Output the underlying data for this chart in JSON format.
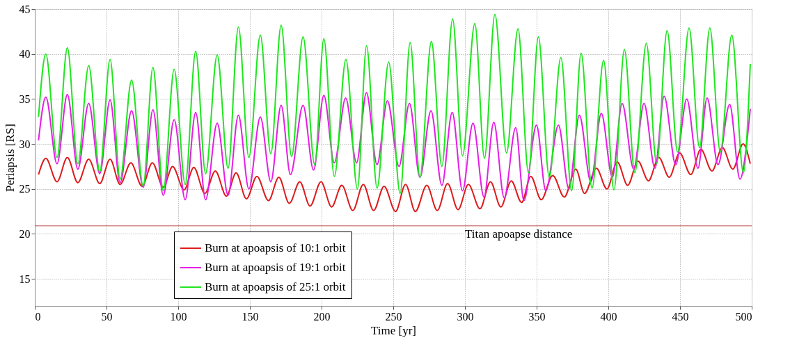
{
  "chart_data": {
    "type": "line",
    "xlabel": "Time [yr]",
    "ylabel": "Periapsis [RS]",
    "xlim": [
      0,
      500
    ],
    "ylim": [
      12,
      45
    ],
    "xticks": [
      0,
      50,
      100,
      150,
      200,
      250,
      300,
      350,
      400,
      450,
      500
    ],
    "yticks": [
      15,
      20,
      25,
      30,
      35,
      40,
      45
    ],
    "grid": true,
    "legend": "bottom left",
    "line_style": "solid",
    "marker": "none",
    "ref_lines": [
      {
        "axis": "y",
        "value": 20.9,
        "label": "Titan apoapse distance",
        "color": "#c0504d"
      }
    ],
    "series": [
      {
        "name": "Burn at apoapsis of 10:1 orbit",
        "color": "#dd1c1c",
        "x": [
          2.6,
          7.7,
          15.5,
          22.7,
          30,
          37.6,
          45.3,
          52.5,
          59.5,
          67.0,
          74.8,
          82.0,
          89.6,
          96.1,
          104.1,
          110.9,
          118.6,
          125.9,
          133.6,
          140.4,
          147.6,
          154.9,
          163.0,
          170.2,
          177.5,
          184.8,
          192.0,
          199.6,
          207.0,
          214.1,
          221.8,
          229.1,
          236.3,
          243.6,
          251.6,
          258.6,
          265.4,
          273.4,
          280.7,
          287.9,
          295.2,
          302.4,
          310.5,
          317.8,
          325.0,
          332.3,
          339.5,
          345.9,
          353.2,
          361.2,
          369.3,
          377.3,
          383.4,
          391.7,
          399.0,
          406.2,
          413.5,
          420.7,
          428.0,
          435.2,
          442.5,
          449.7,
          457.5,
          464.5,
          472.3,
          479.5,
          486.8,
          494.0,
          499.0
        ],
        "values": [
          26.6,
          28.4,
          25.8,
          28.5,
          25.7,
          28.3,
          25.6,
          28.3,
          25.5,
          27.9,
          25.3,
          27.9,
          25.2,
          27.5,
          24.9,
          27.4,
          24.5,
          27.0,
          24.2,
          26.8,
          23.9,
          26.4,
          23.7,
          26.3,
          23.4,
          25.8,
          23.1,
          25.8,
          23.0,
          25.4,
          22.6,
          25.5,
          22.6,
          25.3,
          22.5,
          25.5,
          22.5,
          25.4,
          22.6,
          25.6,
          22.7,
          25.5,
          22.8,
          25.8,
          23.0,
          25.9,
          23.5,
          26.4,
          23.8,
          26.5,
          24.1,
          27.2,
          24.5,
          27.3,
          25.0,
          28.0,
          25.4,
          28.1,
          25.9,
          28.5,
          26.3,
          29.0,
          26.6,
          29.4,
          27.0,
          29.6,
          27.2,
          30.0,
          27.8
        ]
      },
      {
        "name": "Burn at apoapsis of 19:1 orbit",
        "color": "#e61ee6",
        "x": [
          2.6,
          7.7,
          15.5,
          22.7,
          30,
          37.6,
          45.3,
          52.5,
          59.5,
          67.5,
          75.6,
          82.4,
          89.6,
          97.2,
          104.9,
          112.2,
          119.1,
          127.2,
          134.8,
          142,
          149.3,
          157.3,
          164.6,
          171.8,
          178.3,
          187.1,
          194.4,
          201.6,
          208.9,
          216.8,
          224.4,
          231.3,
          238.7,
          245.9,
          254.0,
          261.3,
          268.6,
          276.3,
          283.9,
          291.1,
          298.3,
          305.6,
          313.3,
          320.1,
          327.4,
          335.4,
          341.1,
          349.9,
          356.4,
          365.2,
          372.5,
          379.8,
          387.8,
          395.1,
          402.8,
          409.6,
          417.7,
          424.9,
          432.5,
          438.9,
          447.0,
          454.7,
          462.5,
          468.9,
          476.5,
          484.6,
          491.8,
          499.0
        ],
        "values": [
          30.4,
          35.2,
          27.8,
          35.5,
          27.2,
          34.5,
          26.7,
          34.9,
          25.7,
          33.7,
          25.2,
          33.8,
          24.3,
          32.7,
          23.8,
          33.5,
          23.8,
          32.3,
          24.3,
          33.2,
          25.0,
          33.0,
          25.8,
          34.3,
          26.6,
          34.3,
          27.1,
          35.4,
          27.9,
          35.1,
          27.9,
          35.7,
          27.7,
          34.8,
          27.5,
          34.5,
          26.3,
          33.7,
          25.4,
          33.5,
          24.8,
          32.3,
          24.1,
          32.4,
          24.0,
          31.8,
          23.7,
          32.1,
          24.8,
          32.1,
          25.0,
          33.2,
          25.8,
          33.4,
          26.3,
          34.5,
          27.2,
          34.5,
          27.3,
          35.3,
          27.7,
          35.0,
          27.3,
          35.1,
          27.7,
          34.4,
          26.1,
          33.9
        ]
      },
      {
        "name": "Burn at apoapsis of 25:1 orbit",
        "color": "#1ee61e",
        "x": [
          2.6,
          7.7,
          15.5,
          22.7,
          30,
          37.6,
          45.3,
          52.5,
          59.5,
          67.5,
          75.6,
          82.4,
          89.6,
          97.2,
          104.9,
          112.2,
          119.1,
          127.2,
          134.8,
          142,
          149.3,
          157.3,
          164.6,
          171.8,
          179.1,
          187.1,
          195.2,
          201.6,
          208.9,
          217.0,
          225.0,
          231.4,
          238.7,
          246.8,
          254.8,
          261.8,
          268.6,
          276.6,
          283.9,
          291.4,
          298.3,
          306.9,
          313.6,
          320.9,
          329.0,
          337.0,
          344.3,
          351.2,
          358.8,
          366.9,
          374.4,
          381.0,
          388.6,
          396.7,
          403.9,
          411.2,
          418.5,
          426.5,
          433.7,
          441.0,
          448.3,
          456.3,
          463.6,
          470.8,
          478.1,
          486.1,
          494.2,
          499.0
        ],
        "values": [
          33.0,
          40.0,
          28.5,
          40.7,
          27.8,
          38.7,
          26.9,
          39.4,
          26.1,
          37.1,
          25.3,
          38.5,
          24.8,
          38.3,
          25.5,
          40.3,
          26.7,
          39.9,
          27.3,
          43.0,
          28.5,
          42.1,
          28.9,
          43.2,
          28.6,
          41.9,
          27.7,
          41.7,
          26.4,
          39.4,
          25.0,
          40.9,
          25.1,
          39.1,
          24.5,
          41.3,
          26.3,
          41.4,
          27.5,
          43.9,
          28.7,
          43.4,
          28.4,
          44.4,
          29.0,
          42.8,
          26.8,
          41.9,
          26.3,
          39.6,
          24.8,
          40.1,
          25.1,
          39.3,
          24.9,
          40.5,
          26.8,
          41.2,
          27.8,
          42.6,
          29.1,
          42.9,
          29.6,
          42.9,
          29.1,
          42.1,
          26.8,
          38.9
        ]
      }
    ]
  }
}
